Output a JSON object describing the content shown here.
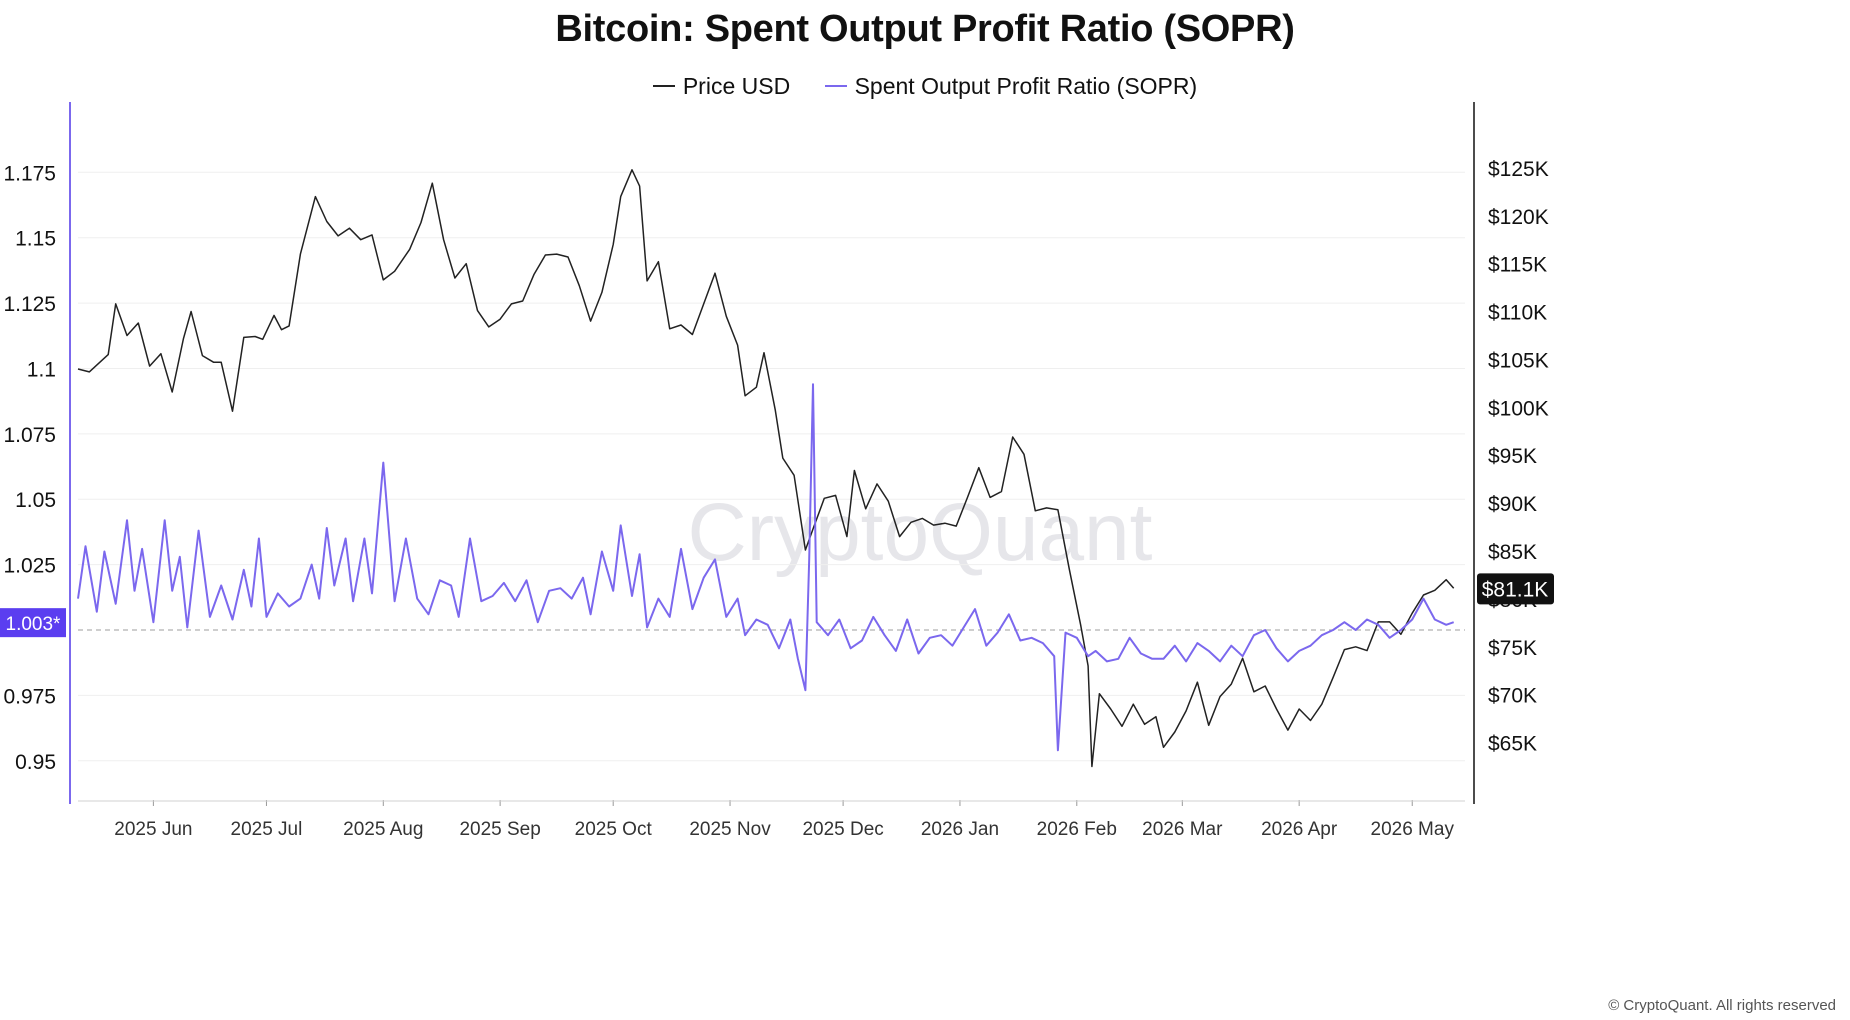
{
  "title": "Bitcoin: Spent Output Profit Ratio (SOPR)",
  "watermark": "CryptoQuant",
  "footer": "© CryptoQuant. All rights reserved",
  "legend": [
    {
      "label": "Price USD",
      "color": "#222222"
    },
    {
      "label": "Spent Output Profit Ratio (SOPR)",
      "color": "#7b68ee"
    }
  ],
  "chart_data": {
    "type": "line",
    "title": "Bitcoin: Spent Output Profit Ratio (SOPR)",
    "x_range": [
      "2025-05-12",
      "2026-05-15"
    ],
    "x_ticks": [
      "2025 Jun",
      "2025 Jul",
      "2025 Aug",
      "2025 Sep",
      "2025 Oct",
      "2025 Nov",
      "2025 Dec",
      "2026 Jan",
      "2026 Feb",
      "2026 Mar",
      "2026 Apr",
      "2026 May"
    ],
    "y_left": {
      "label": "Spent Output Profit Ratio (SOPR)",
      "range": [
        0.935,
        1.195
      ],
      "ticks": [
        "1.175",
        "1.15",
        "1.125",
        "1.1",
        "1.075",
        "1.05",
        "1.025",
        "0.975",
        "0.95"
      ]
    },
    "y_right": {
      "label": "Price USD",
      "range": [
        59000,
        130000
      ],
      "ticks": [
        "$125K",
        "$120K",
        "$115K",
        "$110K",
        "$105K",
        "$100K",
        "$95K",
        "$90K",
        "$85K",
        "$80K",
        "$75K",
        "$70K",
        "$65K"
      ]
    },
    "reference_line": {
      "value": 1.0,
      "style": "dashed"
    },
    "current_labels": {
      "sopr": "1.003*",
      "price": "$81.1K"
    },
    "grid": true,
    "legend_position": "top-center",
    "series": [
      {
        "name": "Price USD",
        "axis": "right",
        "color": "#222222",
        "points": [
          [
            "2025-05-12",
            104000
          ],
          [
            "2025-05-15",
            103700
          ],
          [
            "2025-05-20",
            105500
          ],
          [
            "2025-05-22",
            110800
          ],
          [
            "2025-05-25",
            107500
          ],
          [
            "2025-05-28",
            108800
          ],
          [
            "2025-05-31",
            104300
          ],
          [
            "2025-06-03",
            105600
          ],
          [
            "2025-06-06",
            101600
          ],
          [
            "2025-06-09",
            107200
          ],
          [
            "2025-06-11",
            110000
          ],
          [
            "2025-06-14",
            105400
          ],
          [
            "2025-06-17",
            104700
          ],
          [
            "2025-06-19",
            104700
          ],
          [
            "2025-06-22",
            99600
          ],
          [
            "2025-06-25",
            107300
          ],
          [
            "2025-06-28",
            107400
          ],
          [
            "2025-06-30",
            107100
          ],
          [
            "2025-07-03",
            109600
          ],
          [
            "2025-07-05",
            108100
          ],
          [
            "2025-07-07",
            108500
          ],
          [
            "2025-07-10",
            116000
          ],
          [
            "2025-07-14",
            122000
          ],
          [
            "2025-07-17",
            119400
          ],
          [
            "2025-07-20",
            117900
          ],
          [
            "2025-07-23",
            118700
          ],
          [
            "2025-07-26",
            117500
          ],
          [
            "2025-07-29",
            118000
          ],
          [
            "2025-08-01",
            113300
          ],
          [
            "2025-08-04",
            114200
          ],
          [
            "2025-08-08",
            116500
          ],
          [
            "2025-08-11",
            119300
          ],
          [
            "2025-08-14",
            123400
          ],
          [
            "2025-08-17",
            117500
          ],
          [
            "2025-08-20",
            113500
          ],
          [
            "2025-08-23",
            115000
          ],
          [
            "2025-08-26",
            110100
          ],
          [
            "2025-08-29",
            108400
          ],
          [
            "2025-09-01",
            109200
          ],
          [
            "2025-09-04",
            110800
          ],
          [
            "2025-09-07",
            111100
          ],
          [
            "2025-09-10",
            113900
          ],
          [
            "2025-09-13",
            115900
          ],
          [
            "2025-09-16",
            116000
          ],
          [
            "2025-09-19",
            115700
          ],
          [
            "2025-09-22",
            112700
          ],
          [
            "2025-09-25",
            109000
          ],
          [
            "2025-09-28",
            112000
          ],
          [
            "2025-10-01",
            117000
          ],
          [
            "2025-10-03",
            122000
          ],
          [
            "2025-10-06",
            124800
          ],
          [
            "2025-10-08",
            123100
          ],
          [
            "2025-10-10",
            113200
          ],
          [
            "2025-10-13",
            115200
          ],
          [
            "2025-10-16",
            108200
          ],
          [
            "2025-10-19",
            108600
          ],
          [
            "2025-10-22",
            107600
          ],
          [
            "2025-10-25",
            110800
          ],
          [
            "2025-10-28",
            114000
          ],
          [
            "2025-10-31",
            109500
          ],
          [
            "2025-11-03",
            106500
          ],
          [
            "2025-11-05",
            101200
          ],
          [
            "2025-11-08",
            102100
          ],
          [
            "2025-11-10",
            105700
          ],
          [
            "2025-11-13",
            99700
          ],
          [
            "2025-11-15",
            94700
          ],
          [
            "2025-11-18",
            92900
          ],
          [
            "2025-11-21",
            85100
          ],
          [
            "2025-11-23",
            87300
          ],
          [
            "2025-11-26",
            90500
          ],
          [
            "2025-11-29",
            90800
          ],
          [
            "2025-12-02",
            86500
          ],
          [
            "2025-12-04",
            93400
          ],
          [
            "2025-12-07",
            89400
          ],
          [
            "2025-12-10",
            92000
          ],
          [
            "2025-12-13",
            90200
          ],
          [
            "2025-12-16",
            86500
          ],
          [
            "2025-12-19",
            88000
          ],
          [
            "2025-12-22",
            88400
          ],
          [
            "2025-12-25",
            87700
          ],
          [
            "2025-12-28",
            87900
          ],
          [
            "2025-12-31",
            87600
          ],
          [
            "2026-01-03",
            90600
          ],
          [
            "2026-01-06",
            93700
          ],
          [
            "2026-01-09",
            90600
          ],
          [
            "2026-01-12",
            91200
          ],
          [
            "2026-01-15",
            96900
          ],
          [
            "2026-01-18",
            95100
          ],
          [
            "2026-01-21",
            89200
          ],
          [
            "2026-01-24",
            89500
          ],
          [
            "2026-01-27",
            89300
          ],
          [
            "2026-01-30",
            83100
          ],
          [
            "2026-02-02",
            77300
          ],
          [
            "2026-02-04",
            73000
          ],
          [
            "2026-02-05",
            62500
          ],
          [
            "2026-02-07",
            70100
          ],
          [
            "2026-02-10",
            68500
          ],
          [
            "2026-02-13",
            66700
          ],
          [
            "2026-02-16",
            69000
          ],
          [
            "2026-02-19",
            66900
          ],
          [
            "2026-02-22",
            67700
          ],
          [
            "2026-02-24",
            64500
          ],
          [
            "2026-02-27",
            66100
          ],
          [
            "2026-03-02",
            68300
          ],
          [
            "2026-03-05",
            71300
          ],
          [
            "2026-03-08",
            66800
          ],
          [
            "2026-03-11",
            69800
          ],
          [
            "2026-03-14",
            71100
          ],
          [
            "2026-03-17",
            73800
          ],
          [
            "2026-03-20",
            70300
          ],
          [
            "2026-03-23",
            70900
          ],
          [
            "2026-03-26",
            68500
          ],
          [
            "2026-03-29",
            66300
          ],
          [
            "2026-04-01",
            68500
          ],
          [
            "2026-04-04",
            67300
          ],
          [
            "2026-04-07",
            69000
          ],
          [
            "2026-04-10",
            71800
          ],
          [
            "2026-04-13",
            74700
          ],
          [
            "2026-04-16",
            75000
          ],
          [
            "2026-04-19",
            74600
          ],
          [
            "2026-04-22",
            77600
          ],
          [
            "2026-04-25",
            77600
          ],
          [
            "2026-04-28",
            76300
          ],
          [
            "2026-05-01",
            78500
          ],
          [
            "2026-05-04",
            80400
          ],
          [
            "2026-05-07",
            80900
          ],
          [
            "2026-05-10",
            82000
          ],
          [
            "2026-05-12",
            81100
          ]
        ]
      },
      {
        "name": "Spent Output Profit Ratio (SOPR)",
        "axis": "left",
        "color": "#7b68ee",
        "points": [
          [
            "2025-05-12",
            1.012
          ],
          [
            "2025-05-14",
            1.032
          ],
          [
            "2025-05-17",
            1.007
          ],
          [
            "2025-05-19",
            1.03
          ],
          [
            "2025-05-22",
            1.01
          ],
          [
            "2025-05-25",
            1.042
          ],
          [
            "2025-05-27",
            1.015
          ],
          [
            "2025-05-29",
            1.031
          ],
          [
            "2025-06-01",
            1.003
          ],
          [
            "2025-06-04",
            1.042
          ],
          [
            "2025-06-06",
            1.015
          ],
          [
            "2025-06-08",
            1.028
          ],
          [
            "2025-06-10",
            1.001
          ],
          [
            "2025-06-13",
            1.038
          ],
          [
            "2025-06-16",
            1.005
          ],
          [
            "2025-06-19",
            1.017
          ],
          [
            "2025-06-22",
            1.004
          ],
          [
            "2025-06-25",
            1.023
          ],
          [
            "2025-06-27",
            1.009
          ],
          [
            "2025-06-29",
            1.035
          ],
          [
            "2025-07-01",
            1.005
          ],
          [
            "2025-07-04",
            1.014
          ],
          [
            "2025-07-07",
            1.009
          ],
          [
            "2025-07-10",
            1.012
          ],
          [
            "2025-07-13",
            1.025
          ],
          [
            "2025-07-15",
            1.012
          ],
          [
            "2025-07-17",
            1.039
          ],
          [
            "2025-07-19",
            1.017
          ],
          [
            "2025-07-22",
            1.035
          ],
          [
            "2025-07-24",
            1.011
          ],
          [
            "2025-07-27",
            1.035
          ],
          [
            "2025-07-29",
            1.014
          ],
          [
            "2025-08-01",
            1.064
          ],
          [
            "2025-08-04",
            1.011
          ],
          [
            "2025-08-07",
            1.035
          ],
          [
            "2025-08-10",
            1.012
          ],
          [
            "2025-08-13",
            1.006
          ],
          [
            "2025-08-16",
            1.019
          ],
          [
            "2025-08-19",
            1.017
          ],
          [
            "2025-08-21",
            1.005
          ],
          [
            "2025-08-24",
            1.035
          ],
          [
            "2025-08-27",
            1.011
          ],
          [
            "2025-08-30",
            1.013
          ],
          [
            "2025-09-02",
            1.018
          ],
          [
            "2025-09-05",
            1.011
          ],
          [
            "2025-09-08",
            1.019
          ],
          [
            "2025-09-11",
            1.003
          ],
          [
            "2025-09-14",
            1.015
          ],
          [
            "2025-09-17",
            1.016
          ],
          [
            "2025-09-20",
            1.012
          ],
          [
            "2025-09-23",
            1.02
          ],
          [
            "2025-09-25",
            1.006
          ],
          [
            "2025-09-28",
            1.03
          ],
          [
            "2025-10-01",
            1.015
          ],
          [
            "2025-10-03",
            1.04
          ],
          [
            "2025-10-06",
            1.013
          ],
          [
            "2025-10-08",
            1.029
          ],
          [
            "2025-10-10",
            1.001
          ],
          [
            "2025-10-13",
            1.012
          ],
          [
            "2025-10-16",
            1.005
          ],
          [
            "2025-10-19",
            1.031
          ],
          [
            "2025-10-22",
            1.008
          ],
          [
            "2025-10-25",
            1.02
          ],
          [
            "2025-10-28",
            1.027
          ],
          [
            "2025-10-31",
            1.005
          ],
          [
            "2025-11-03",
            1.012
          ],
          [
            "2025-11-05",
            0.998
          ],
          [
            "2025-11-08",
            1.004
          ],
          [
            "2025-11-11",
            1.002
          ],
          [
            "2025-11-14",
            0.993
          ],
          [
            "2025-11-17",
            1.004
          ],
          [
            "2025-11-19",
            0.989
          ],
          [
            "2025-11-21",
            0.977
          ],
          [
            "2025-11-22",
            1.027
          ],
          [
            "2025-11-23",
            1.094
          ],
          [
            "2025-11-24",
            1.003
          ],
          [
            "2025-11-27",
            0.998
          ],
          [
            "2025-11-30",
            1.004
          ],
          [
            "2025-12-03",
            0.993
          ],
          [
            "2025-12-06",
            0.996
          ],
          [
            "2025-12-09",
            1.005
          ],
          [
            "2025-12-12",
            0.998
          ],
          [
            "2025-12-15",
            0.992
          ],
          [
            "2025-12-18",
            1.004
          ],
          [
            "2025-12-21",
            0.991
          ],
          [
            "2025-12-24",
            0.997
          ],
          [
            "2025-12-27",
            0.998
          ],
          [
            "2025-12-30",
            0.994
          ],
          [
            "2026-01-02",
            1.001
          ],
          [
            "2026-01-05",
            1.008
          ],
          [
            "2026-01-08",
            0.994
          ],
          [
            "2026-01-11",
            0.999
          ],
          [
            "2026-01-14",
            1.006
          ],
          [
            "2026-01-17",
            0.996
          ],
          [
            "2026-01-20",
            0.997
          ],
          [
            "2026-01-23",
            0.995
          ],
          [
            "2026-01-26",
            0.99
          ],
          [
            "2026-01-27",
            0.954
          ],
          [
            "2026-01-29",
            0.999
          ],
          [
            "2026-02-01",
            0.997
          ],
          [
            "2026-02-04",
            0.99
          ],
          [
            "2026-02-06",
            0.992
          ],
          [
            "2026-02-09",
            0.988
          ],
          [
            "2026-02-12",
            0.989
          ],
          [
            "2026-02-15",
            0.997
          ],
          [
            "2026-02-18",
            0.991
          ],
          [
            "2026-02-21",
            0.989
          ],
          [
            "2026-02-24",
            0.989
          ],
          [
            "2026-02-27",
            0.994
          ],
          [
            "2026-03-02",
            0.988
          ],
          [
            "2026-03-05",
            0.995
          ],
          [
            "2026-03-08",
            0.992
          ],
          [
            "2026-03-11",
            0.988
          ],
          [
            "2026-03-14",
            0.994
          ],
          [
            "2026-03-17",
            0.99
          ],
          [
            "2026-03-20",
            0.998
          ],
          [
            "2026-03-23",
            1.0
          ],
          [
            "2026-03-26",
            0.993
          ],
          [
            "2026-03-29",
            0.988
          ],
          [
            "2026-04-01",
            0.992
          ],
          [
            "2026-04-04",
            0.994
          ],
          [
            "2026-04-07",
            0.998
          ],
          [
            "2026-04-10",
            1.0
          ],
          [
            "2026-04-13",
            1.003
          ],
          [
            "2026-04-16",
            1.0
          ],
          [
            "2026-04-19",
            1.004
          ],
          [
            "2026-04-22",
            1.002
          ],
          [
            "2026-04-25",
            0.997
          ],
          [
            "2026-04-28",
            1.0
          ],
          [
            "2026-05-01",
            1.004
          ],
          [
            "2026-05-04",
            1.012
          ],
          [
            "2026-05-07",
            1.004
          ],
          [
            "2026-05-10",
            1.002
          ],
          [
            "2026-05-12",
            1.003
          ]
        ]
      }
    ]
  }
}
